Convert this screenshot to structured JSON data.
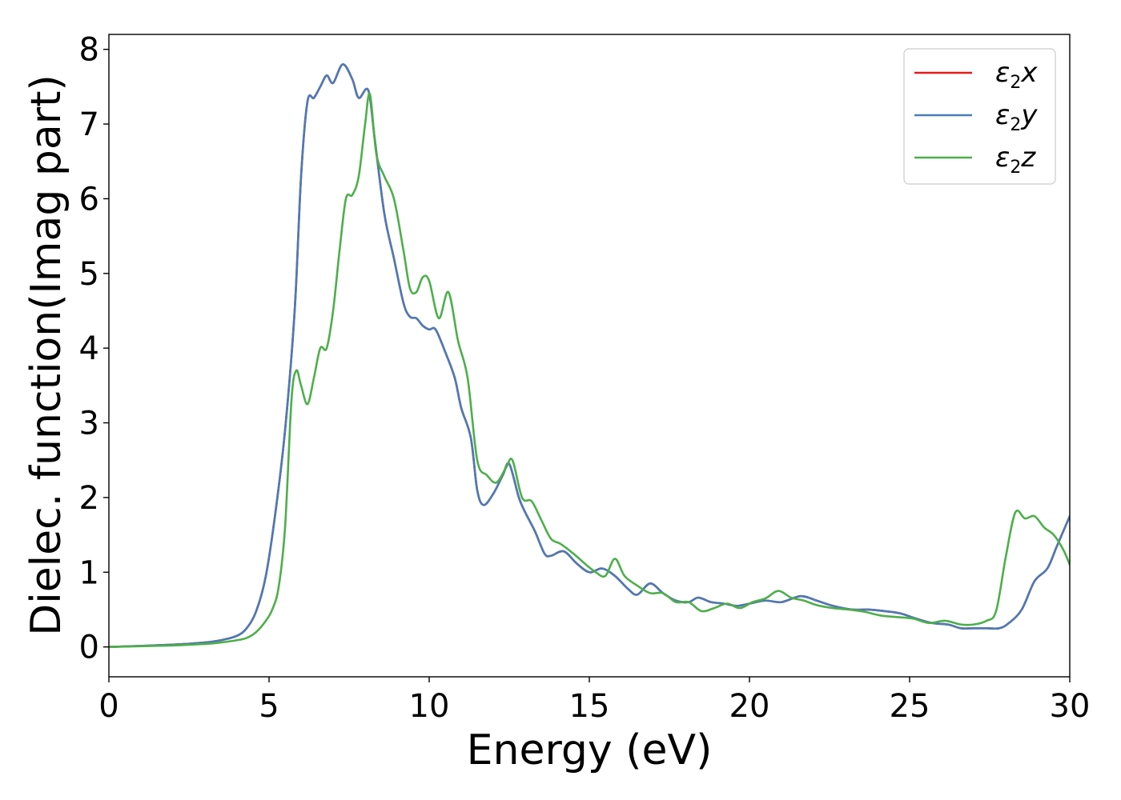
{
  "chart_data": {
    "type": "line",
    "title": "",
    "xlabel": "Energy (eV)",
    "ylabel": "Dielec. function(Imag part)",
    "xlim": [
      0,
      30
    ],
    "ylim": [
      -0.4,
      8.2
    ],
    "xticks": [
      0,
      5,
      10,
      15,
      20,
      25,
      30
    ],
    "xtick_labels": [
      "0",
      "5",
      "10",
      "15",
      "20",
      "25",
      "30"
    ],
    "yticks": [
      0,
      1,
      2,
      3,
      4,
      5,
      6,
      7,
      8
    ],
    "ytick_labels": [
      "0",
      "1",
      "2",
      "3",
      "4",
      "5",
      "6",
      "7",
      "8"
    ],
    "grid": false,
    "legend": {
      "position": "top-right"
    },
    "series": [
      {
        "name": "ε2x",
        "legend_main": "ε",
        "legend_sub": "2",
        "legend_axis": "x",
        "color": "#e41a1c",
        "x": [
          0,
          2,
          3,
          3.5,
          4,
          4.3,
          4.6,
          4.9,
          5.2,
          5.5,
          5.8,
          6.0,
          6.2,
          6.4,
          6.6,
          6.8,
          7.0,
          7.3,
          7.6,
          7.8,
          8.1,
          8.3,
          8.6,
          8.9,
          9.2,
          9.4,
          9.6,
          9.8,
          10.0,
          10.2,
          10.5,
          10.8,
          11.0,
          11.3,
          11.5,
          11.7,
          12.0,
          12.3,
          12.5,
          12.8,
          13.0,
          13.3,
          13.6,
          13.8,
          14.2,
          14.6,
          15.0,
          15.4,
          15.8,
          16.2,
          16.5,
          16.9,
          17.3,
          17.7,
          18.1,
          18.4,
          18.8,
          19.2,
          19.6,
          20.0,
          20.5,
          21.0,
          21.6,
          22.1,
          22.6,
          23.2,
          23.7,
          24.2,
          24.7,
          25.2,
          25.7,
          26.2,
          26.6,
          27.0,
          27.4,
          27.8,
          28.1,
          28.5,
          28.9,
          29.3,
          29.6,
          30.0
        ],
        "y": [
          0.0,
          0.03,
          0.06,
          0.09,
          0.15,
          0.25,
          0.48,
          0.95,
          1.8,
          2.9,
          4.5,
          6.3,
          7.3,
          7.35,
          7.5,
          7.65,
          7.55,
          7.8,
          7.6,
          7.35,
          7.45,
          6.8,
          5.8,
          5.2,
          4.6,
          4.42,
          4.4,
          4.3,
          4.25,
          4.25,
          3.95,
          3.6,
          3.2,
          2.8,
          2.1,
          1.9,
          2.05,
          2.3,
          2.45,
          2.0,
          1.8,
          1.55,
          1.25,
          1.22,
          1.28,
          1.12,
          1.0,
          1.05,
          0.95,
          0.78,
          0.7,
          0.85,
          0.72,
          0.62,
          0.6,
          0.66,
          0.6,
          0.58,
          0.55,
          0.58,
          0.62,
          0.6,
          0.68,
          0.62,
          0.55,
          0.5,
          0.5,
          0.48,
          0.45,
          0.38,
          0.32,
          0.3,
          0.25,
          0.25,
          0.25,
          0.25,
          0.32,
          0.5,
          0.88,
          1.05,
          1.35,
          1.75
        ]
      },
      {
        "name": "ε2y",
        "legend_main": "ε",
        "legend_sub": "2",
        "legend_axis": "y",
        "color": "#4a7bb7",
        "x": [
          0,
          2,
          3,
          3.5,
          4,
          4.3,
          4.6,
          4.9,
          5.2,
          5.5,
          5.8,
          6.0,
          6.2,
          6.4,
          6.6,
          6.8,
          7.0,
          7.3,
          7.6,
          7.8,
          8.1,
          8.3,
          8.6,
          8.9,
          9.2,
          9.4,
          9.6,
          9.8,
          10.0,
          10.2,
          10.5,
          10.8,
          11.0,
          11.3,
          11.5,
          11.7,
          12.0,
          12.3,
          12.5,
          12.8,
          13.0,
          13.3,
          13.6,
          13.8,
          14.2,
          14.6,
          15.0,
          15.4,
          15.8,
          16.2,
          16.5,
          16.9,
          17.3,
          17.7,
          18.1,
          18.4,
          18.8,
          19.2,
          19.6,
          20.0,
          20.5,
          21.0,
          21.6,
          22.1,
          22.6,
          23.2,
          23.7,
          24.2,
          24.7,
          25.2,
          25.7,
          26.2,
          26.6,
          27.0,
          27.4,
          27.8,
          28.1,
          28.5,
          28.9,
          29.3,
          29.6,
          30.0
        ],
        "y": [
          0.0,
          0.03,
          0.06,
          0.09,
          0.15,
          0.25,
          0.48,
          0.95,
          1.8,
          2.9,
          4.5,
          6.3,
          7.3,
          7.35,
          7.5,
          7.65,
          7.55,
          7.8,
          7.6,
          7.35,
          7.45,
          6.8,
          5.8,
          5.2,
          4.6,
          4.42,
          4.4,
          4.3,
          4.25,
          4.25,
          3.95,
          3.6,
          3.2,
          2.8,
          2.1,
          1.9,
          2.05,
          2.3,
          2.45,
          2.0,
          1.8,
          1.55,
          1.25,
          1.22,
          1.28,
          1.12,
          1.0,
          1.05,
          0.95,
          0.78,
          0.7,
          0.85,
          0.72,
          0.62,
          0.6,
          0.66,
          0.6,
          0.58,
          0.55,
          0.58,
          0.62,
          0.6,
          0.68,
          0.62,
          0.55,
          0.5,
          0.5,
          0.48,
          0.45,
          0.38,
          0.32,
          0.3,
          0.25,
          0.25,
          0.25,
          0.25,
          0.32,
          0.5,
          0.88,
          1.05,
          1.35,
          1.75
        ]
      },
      {
        "name": "ε2z",
        "legend_main": "ε",
        "legend_sub": "2",
        "legend_axis": "z",
        "color": "#4daf4a",
        "x": [
          0,
          2,
          3,
          3.5,
          4,
          4.3,
          4.6,
          4.9,
          5.1,
          5.3,
          5.5,
          5.7,
          5.85,
          6.0,
          6.2,
          6.4,
          6.6,
          6.8,
          7.0,
          7.2,
          7.4,
          7.6,
          7.8,
          8.0,
          8.15,
          8.35,
          8.6,
          8.9,
          9.2,
          9.4,
          9.6,
          9.8,
          10.0,
          10.3,
          10.6,
          10.9,
          11.2,
          11.5,
          11.8,
          12.1,
          12.4,
          12.6,
          12.9,
          13.2,
          13.5,
          13.8,
          14.1,
          14.5,
          14.9,
          15.2,
          15.5,
          15.8,
          16.1,
          16.5,
          16.9,
          17.3,
          17.7,
          18.1,
          18.5,
          18.9,
          19.3,
          19.7,
          20.1,
          20.5,
          20.9,
          21.3,
          21.7,
          22.1,
          22.6,
          23.1,
          23.6,
          24.1,
          24.6,
          25.1,
          25.6,
          26.1,
          26.6,
          27.0,
          27.4,
          27.7,
          28.0,
          28.3,
          28.6,
          28.9,
          29.2,
          29.5,
          29.8,
          30.0
        ],
        "y": [
          0.0,
          0.02,
          0.04,
          0.06,
          0.09,
          0.12,
          0.2,
          0.35,
          0.5,
          0.8,
          1.6,
          3.3,
          3.7,
          3.5,
          3.25,
          3.6,
          4.0,
          4.0,
          4.5,
          5.3,
          6.0,
          6.05,
          6.3,
          7.0,
          7.4,
          6.6,
          6.3,
          6.0,
          5.3,
          4.8,
          4.75,
          4.95,
          4.9,
          4.4,
          4.75,
          4.1,
          3.6,
          2.5,
          2.3,
          2.2,
          2.4,
          2.5,
          2.0,
          1.95,
          1.7,
          1.45,
          1.38,
          1.25,
          1.1,
          1.0,
          0.95,
          1.18,
          0.95,
          0.82,
          0.72,
          0.72,
          0.6,
          0.6,
          0.48,
          0.52,
          0.58,
          0.52,
          0.6,
          0.65,
          0.75,
          0.66,
          0.62,
          0.56,
          0.52,
          0.5,
          0.47,
          0.42,
          0.4,
          0.38,
          0.32,
          0.35,
          0.3,
          0.3,
          0.35,
          0.48,
          1.2,
          1.8,
          1.72,
          1.75,
          1.6,
          1.5,
          1.3,
          1.1
        ]
      }
    ]
  }
}
